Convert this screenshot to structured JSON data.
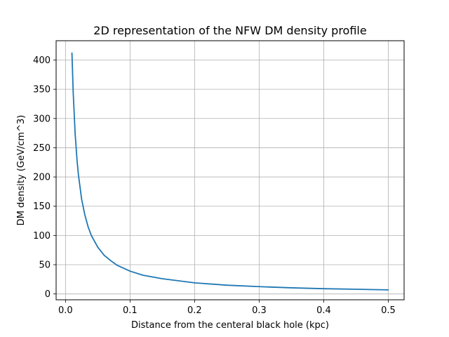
{
  "chart_data": {
    "type": "line",
    "title": "2D representation of the NFW DM density profile",
    "xlabel": "Distance from the centeral black hole (kpc)",
    "ylabel": "DM density (GeV/cm^3)",
    "xlim": [
      -0.0145,
      0.5245
    ],
    "ylim": [
      -10,
      433
    ],
    "x_ticks": [
      0.0,
      0.1,
      0.2,
      0.3,
      0.4,
      0.5
    ],
    "x_tick_labels": [
      "0.0",
      "0.1",
      "0.2",
      "0.3",
      "0.4",
      "0.5"
    ],
    "y_ticks": [
      0,
      50,
      100,
      150,
      200,
      250,
      300,
      350,
      400
    ],
    "y_tick_labels": [
      "0",
      "50",
      "100",
      "150",
      "200",
      "250",
      "300",
      "350",
      "400"
    ],
    "grid": true,
    "series": [
      {
        "color": "#1f77b4",
        "x": [
          0.01,
          0.012,
          0.015,
          0.018,
          0.02,
          0.025,
          0.03,
          0.035,
          0.04,
          0.05,
          0.06,
          0.07,
          0.08,
          0.1,
          0.12,
          0.15,
          0.2,
          0.25,
          0.3,
          0.35,
          0.4,
          0.45,
          0.5
        ],
        "values": [
          412,
          343,
          273,
          227,
          204,
          162,
          135,
          115,
          100,
          80,
          66,
          57,
          49,
          39,
          32,
          26,
          19,
          15,
          12.5,
          10.5,
          9,
          8,
          7
        ]
      }
    ]
  }
}
